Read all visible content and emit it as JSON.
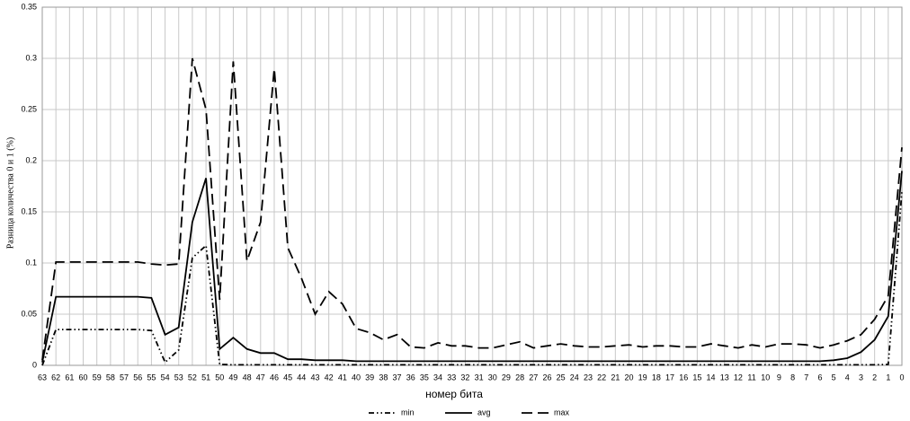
{
  "chart_data": {
    "type": "line",
    "x_label": "номер бита",
    "y_label": "Разница количества 0 и 1 (%)",
    "categories": [
      "63",
      "62",
      "61",
      "60",
      "59",
      "58",
      "57",
      "56",
      "55",
      "54",
      "53",
      "52",
      "51",
      "50",
      "49",
      "48",
      "47",
      "46",
      "45",
      "44",
      "43",
      "42",
      "41",
      "40",
      "39",
      "38",
      "37",
      "36",
      "35",
      "34",
      "33",
      "32",
      "31",
      "30",
      "29",
      "28",
      "27",
      "26",
      "25",
      "24",
      "23",
      "22",
      "21",
      "20",
      "19",
      "18",
      "17",
      "16",
      "15",
      "14",
      "13",
      "12",
      "11",
      "10",
      "9",
      "8",
      "7",
      "6",
      "5",
      "4",
      "3",
      "2",
      "1",
      "0"
    ],
    "series": [
      {
        "name": "min",
        "color": "#000000",
        "style": "dash-dot-dot",
        "values": [
          0,
          0.035,
          0.035,
          0.035,
          0.035,
          0.035,
          0.035,
          0.035,
          0.034,
          0.003,
          0.015,
          0.105,
          0.117,
          0.001,
          0.0005,
          0.0005,
          0.0005,
          0.0005,
          0.0005,
          0.0005,
          0.0005,
          0.0005,
          0.0005,
          0.0005,
          0.0005,
          0.0005,
          0.0005,
          0.0005,
          0.0005,
          0.0005,
          0.0005,
          0.0005,
          0.0005,
          0.0005,
          0.0005,
          0.0005,
          0.0005,
          0.0005,
          0.0005,
          0.0005,
          0.0005,
          0.0005,
          0.0005,
          0.0005,
          0.0005,
          0.0005,
          0.0005,
          0.0005,
          0.0005,
          0.0005,
          0.0005,
          0.0005,
          0.0005,
          0.0005,
          0.0005,
          0.0005,
          0.0005,
          0.0005,
          0.0005,
          0.0005,
          0.0005,
          0.0005,
          0.001,
          0.17
        ]
      },
      {
        "name": "avg",
        "color": "#000000",
        "style": "solid",
        "values": [
          0.003,
          0.067,
          0.067,
          0.067,
          0.067,
          0.067,
          0.067,
          0.067,
          0.066,
          0.03,
          0.037,
          0.14,
          0.183,
          0.016,
          0.027,
          0.016,
          0.012,
          0.012,
          0.006,
          0.006,
          0.005,
          0.005,
          0.005,
          0.004,
          0.004,
          0.004,
          0.004,
          0.004,
          0.004,
          0.004,
          0.004,
          0.004,
          0.004,
          0.004,
          0.004,
          0.004,
          0.004,
          0.004,
          0.004,
          0.004,
          0.004,
          0.004,
          0.004,
          0.004,
          0.004,
          0.004,
          0.004,
          0.004,
          0.004,
          0.004,
          0.004,
          0.004,
          0.004,
          0.004,
          0.004,
          0.004,
          0.004,
          0.004,
          0.005,
          0.007,
          0.013,
          0.025,
          0.048,
          0.19
        ]
      },
      {
        "name": "max",
        "color": "#000000",
        "style": "long-dash",
        "values": [
          0.005,
          0.101,
          0.101,
          0.101,
          0.101,
          0.101,
          0.101,
          0.101,
          0.099,
          0.098,
          0.099,
          0.3,
          0.25,
          0.064,
          0.297,
          0.102,
          0.14,
          0.29,
          0.115,
          0.085,
          0.05,
          0.072,
          0.06,
          0.036,
          0.032,
          0.025,
          0.03,
          0.018,
          0.017,
          0.022,
          0.019,
          0.019,
          0.017,
          0.017,
          0.02,
          0.023,
          0.017,
          0.019,
          0.021,
          0.019,
          0.018,
          0.018,
          0.019,
          0.02,
          0.018,
          0.019,
          0.019,
          0.018,
          0.018,
          0.021,
          0.019,
          0.017,
          0.02,
          0.018,
          0.021,
          0.021,
          0.02,
          0.017,
          0.02,
          0.024,
          0.03,
          0.045,
          0.068,
          0.213
        ]
      }
    ],
    "ylim": [
      0,
      0.35
    ],
    "yticks": [
      0,
      0.05,
      0.1,
      0.15,
      0.2,
      0.25,
      0.3,
      0.35
    ],
    "grid": true,
    "legend": "bottom"
  }
}
